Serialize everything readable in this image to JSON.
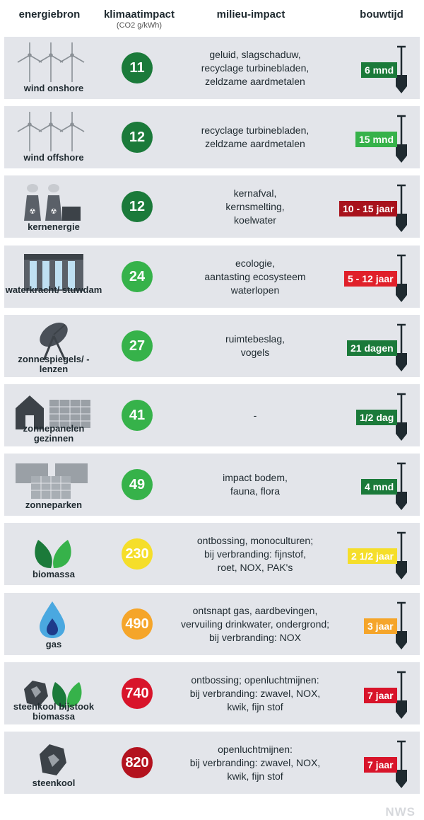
{
  "header": {
    "col1": "energiebron",
    "col2": "klimaatimpact",
    "col2_sub": "(CO2 g/kWh)",
    "col3": "milieu-impact",
    "col4": "bouwtijd"
  },
  "chart_data": {
    "type": "table",
    "rows": [
      {
        "source": "wind onshore",
        "icon": "wind-turbines",
        "co2": 11,
        "circle_color": "#1b7a3a",
        "impact": [
          "geluid, slagschaduw,",
          "recyclage turbinebladen,",
          "zeldzame aardmetalen"
        ],
        "buildtime": "6 mnd",
        "tag_color": "#1b7a3a"
      },
      {
        "source": "wind offshore",
        "icon": "wind-turbines",
        "co2": 12,
        "circle_color": "#1b7a3a",
        "impact": [
          "recyclage turbinebladen,",
          "zeldzame aardmetalen"
        ],
        "buildtime": "15 mnd",
        "tag_color": "#36b24a"
      },
      {
        "source": "kernenergie",
        "icon": "nuclear-plant",
        "co2": 12,
        "circle_color": "#1b7a3a",
        "impact": [
          "kernafval,",
          "kernsmelting,",
          "koelwater"
        ],
        "buildtime": "10 - 15 jaar",
        "tag_color": "#a8121c"
      },
      {
        "source": "waterkracht/ stuwdam",
        "icon": "dam",
        "co2": 24,
        "circle_color": "#36b24a",
        "impact": [
          "ecologie,",
          "aantasting ecosysteem",
          "waterlopen"
        ],
        "buildtime": "5 - 12 jaar",
        "tag_color": "#e0202a"
      },
      {
        "source": "zonnespiegels/ - lenzen",
        "icon": "solar-dish",
        "co2": 27,
        "circle_color": "#36b24a",
        "impact": [
          "ruimtebeslag,",
          "vogels"
        ],
        "buildtime": "21 dagen",
        "tag_color": "#1b7a3a"
      },
      {
        "source": "zonnepanelen gezinnen",
        "icon": "house-solar-panel",
        "co2": 41,
        "circle_color": "#36b24a",
        "impact": [
          "-"
        ],
        "buildtime": "1/2 dag",
        "tag_color": "#1b7a3a"
      },
      {
        "source": "zonneparken",
        "icon": "solar-park",
        "co2": 49,
        "circle_color": "#36b24a",
        "impact": [
          "impact bodem,",
          "fauna, flora"
        ],
        "buildtime": "4 mnd",
        "tag_color": "#1b7a3a"
      },
      {
        "source": "biomassa",
        "icon": "leaves",
        "co2": 230,
        "circle_color": "#f5de2a",
        "impact": [
          "ontbossing, monoculturen;",
          "bij verbranding: fijnstof,",
          "roet, NOX, PAK's"
        ],
        "buildtime": "2 1/2 jaar",
        "tag_color": "#f5de2a"
      },
      {
        "source": "gas",
        "icon": "gas-drop",
        "co2": 490,
        "circle_color": "#f5a52a",
        "impact": [
          "ontsnapt gas, aardbevingen,",
          "vervuiling drinkwater, ondergrond;",
          "bij verbranding: NOX"
        ],
        "buildtime": "3 jaar",
        "tag_color": "#f5a52a"
      },
      {
        "source": "steenkool bijstook biomassa",
        "icon": "coal-and-leaves",
        "co2": 740,
        "circle_color": "#d8142a",
        "impact": [
          "ontbossing; openluchtmijnen:",
          "bij verbranding: zwavel, NOX,",
          "kwik, fijn stof"
        ],
        "buildtime": "7 jaar",
        "tag_color": "#d8142a"
      },
      {
        "source": "steenkool",
        "icon": "coal",
        "co2": 820,
        "circle_color": "#b3121e",
        "impact": [
          "openluchtmijnen:",
          "bij verbranding: zwavel, NOX,",
          "kwik, fijn stof"
        ],
        "buildtime": "7 jaar",
        "tag_color": "#d8142a"
      }
    ]
  },
  "footer": {
    "logo": "NWS"
  }
}
